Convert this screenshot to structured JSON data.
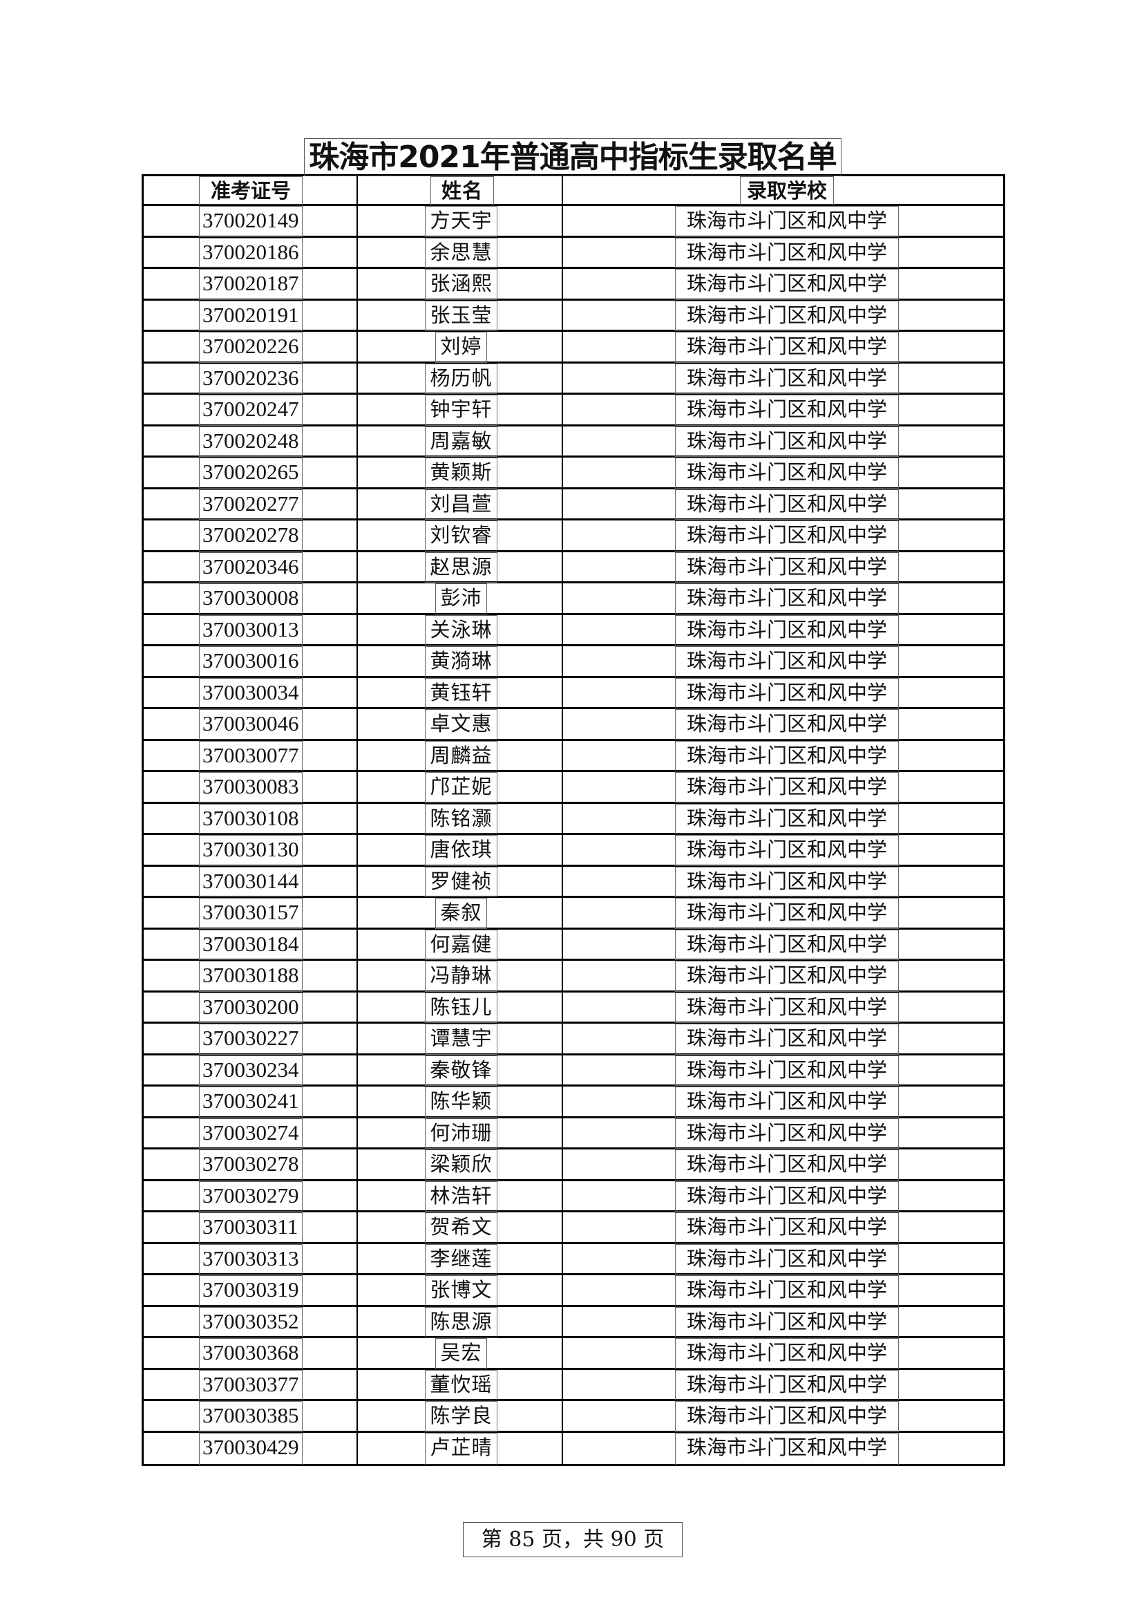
{
  "title": "珠海市2021年普通高中指标生录取名单",
  "columns": [
    "准考证号",
    "姓名",
    "录取学校"
  ],
  "rows": [
    [
      "370020149",
      "方天宇",
      "珠海市斗门区和风中学"
    ],
    [
      "370020186",
      "余思慧",
      "珠海市斗门区和风中学"
    ],
    [
      "370020187",
      "张涵熙",
      "珠海市斗门区和风中学"
    ],
    [
      "370020191",
      "张玉莹",
      "珠海市斗门区和风中学"
    ],
    [
      "370020226",
      "刘婷",
      "珠海市斗门区和风中学"
    ],
    [
      "370020236",
      "杨历帆",
      "珠海市斗门区和风中学"
    ],
    [
      "370020247",
      "钟宇轩",
      "珠海市斗门区和风中学"
    ],
    [
      "370020248",
      "周嘉敏",
      "珠海市斗门区和风中学"
    ],
    [
      "370020265",
      "黄颖斯",
      "珠海市斗门区和风中学"
    ],
    [
      "370020277",
      "刘昌萱",
      "珠海市斗门区和风中学"
    ],
    [
      "370020278",
      "刘钦睿",
      "珠海市斗门区和风中学"
    ],
    [
      "370020346",
      "赵思源",
      "珠海市斗门区和风中学"
    ],
    [
      "370030008",
      "彭沛",
      "珠海市斗门区和风中学"
    ],
    [
      "370030013",
      "关泳琳",
      "珠海市斗门区和风中学"
    ],
    [
      "370030016",
      "黄漪琳",
      "珠海市斗门区和风中学"
    ],
    [
      "370030034",
      "黄钰轩",
      "珠海市斗门区和风中学"
    ],
    [
      "370030046",
      "卓文惠",
      "珠海市斗门区和风中学"
    ],
    [
      "370030077",
      "周麟益",
      "珠海市斗门区和风中学"
    ],
    [
      "370030083",
      "邝芷妮",
      "珠海市斗门区和风中学"
    ],
    [
      "370030108",
      "陈铭灏",
      "珠海市斗门区和风中学"
    ],
    [
      "370030130",
      "唐依琪",
      "珠海市斗门区和风中学"
    ],
    [
      "370030144",
      "罗健祯",
      "珠海市斗门区和风中学"
    ],
    [
      "370030157",
      "秦叙",
      "珠海市斗门区和风中学"
    ],
    [
      "370030184",
      "何嘉健",
      "珠海市斗门区和风中学"
    ],
    [
      "370030188",
      "冯静琳",
      "珠海市斗门区和风中学"
    ],
    [
      "370030200",
      "陈钰儿",
      "珠海市斗门区和风中学"
    ],
    [
      "370030227",
      "谭慧宇",
      "珠海市斗门区和风中学"
    ],
    [
      "370030234",
      "秦敬锋",
      "珠海市斗门区和风中学"
    ],
    [
      "370030241",
      "陈华颖",
      "珠海市斗门区和风中学"
    ],
    [
      "370030274",
      "何沛珊",
      "珠海市斗门区和风中学"
    ],
    [
      "370030278",
      "梁颖欣",
      "珠海市斗门区和风中学"
    ],
    [
      "370030279",
      "林浩轩",
      "珠海市斗门区和风中学"
    ],
    [
      "370030311",
      "贺希文",
      "珠海市斗门区和风中学"
    ],
    [
      "370030313",
      "李继莲",
      "珠海市斗门区和风中学"
    ],
    [
      "370030319",
      "张博文",
      "珠海市斗门区和风中学"
    ],
    [
      "370030352",
      "陈思源",
      "珠海市斗门区和风中学"
    ],
    [
      "370030368",
      "吴宏",
      "珠海市斗门区和风中学"
    ],
    [
      "370030377",
      "董忺瑶",
      "珠海市斗门区和风中学"
    ],
    [
      "370030385",
      "陈学良",
      "珠海市斗门区和风中学"
    ],
    [
      "370030429",
      "卢芷晴",
      "珠海市斗门区和风中学"
    ]
  ],
  "footer": "第 85 页，共 90 页"
}
